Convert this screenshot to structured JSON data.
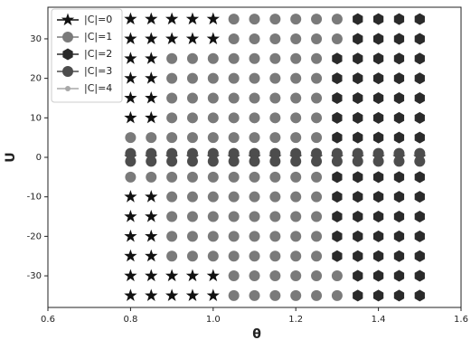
{
  "chart_data": {
    "type": "scatter",
    "x_label": "θ",
    "y_label": "U",
    "xlim": [
      0.6,
      1.6
    ],
    "ylim": [
      -38,
      38
    ],
    "xticks": [
      0.6,
      0.8,
      {
        "value": 1.0,
        "label": "1.0"
      },
      1.2,
      1.4,
      1.6
    ],
    "yticks": [
      -30,
      -20,
      -10,
      0,
      10,
      20,
      30
    ],
    "legend": "upper left",
    "series": [
      {
        "name": "|C|=0",
        "color": "#111111",
        "marker": "star",
        "x": [
          0.8,
          0.85,
          0.9,
          0.95,
          1.0,
          0.8,
          0.85,
          0.9,
          0.95,
          1.0,
          0.8,
          0.85,
          0.8,
          0.85,
          0.8,
          0.85,
          0.8,
          0.85,
          0.8,
          0.85,
          0.9,
          0.95,
          1.0,
          1.05,
          1.1,
          1.15,
          1.2,
          1.25,
          1.3,
          1.35,
          1.4,
          1.45,
          1.5,
          0.8,
          0.85,
          0.8,
          0.85,
          0.8,
          0.85,
          0.8,
          0.85,
          0.8,
          0.85,
          0.9,
          0.95,
          1.0,
          0.8,
          0.85,
          0.9,
          0.95,
          1.0
        ],
        "y": [
          35,
          35,
          35,
          35,
          35,
          30,
          30,
          30,
          30,
          30,
          25,
          25,
          20,
          20,
          15,
          15,
          10,
          10,
          0,
          0,
          0,
          0,
          0,
          0,
          0,
          0,
          0,
          0,
          0,
          0,
          0,
          0,
          0,
          -10,
          -10,
          -15,
          -15,
          -20,
          -20,
          -25,
          -25,
          -30,
          -30,
          -30,
          -30,
          -30,
          -35,
          -35,
          -35,
          -35,
          -35
        ]
      },
      {
        "name": "|C|=1",
        "color": "#7a7a7a",
        "marker": "circle",
        "x": [
          1.05,
          1.1,
          1.15,
          1.2,
          1.25,
          1.3,
          1.05,
          1.1,
          1.15,
          1.2,
          1.25,
          1.3,
          0.9,
          0.95,
          1.0,
          1.05,
          1.1,
          1.15,
          1.2,
          1.25,
          0.9,
          0.95,
          1.0,
          1.05,
          1.1,
          1.15,
          1.2,
          1.25,
          0.9,
          0.95,
          1.0,
          1.05,
          1.1,
          1.15,
          1.2,
          1.25,
          0.9,
          0.95,
          1.0,
          1.05,
          1.1,
          1.15,
          1.2,
          1.25,
          0.8,
          0.85,
          0.9,
          0.95,
          1.0,
          1.05,
          1.1,
          1.15,
          1.2,
          1.25,
          0.8,
          0.85,
          0.9,
          0.95,
          1.0,
          1.05,
          1.1,
          1.15,
          1.2,
          1.25,
          0.9,
          0.95,
          1.0,
          1.05,
          1.1,
          1.15,
          1.2,
          1.25,
          0.9,
          0.95,
          1.0,
          1.05,
          1.1,
          1.15,
          1.2,
          1.25,
          0.9,
          0.95,
          1.0,
          1.05,
          1.1,
          1.15,
          1.2,
          1.25,
          0.9,
          0.95,
          1.0,
          1.05,
          1.1,
          1.15,
          1.2,
          1.25,
          1.05,
          1.1,
          1.15,
          1.2,
          1.25,
          1.3,
          1.05,
          1.1,
          1.15,
          1.2,
          1.25,
          1.3
        ],
        "y": [
          35,
          35,
          35,
          35,
          35,
          35,
          30,
          30,
          30,
          30,
          30,
          30,
          25,
          25,
          25,
          25,
          25,
          25,
          25,
          25,
          20,
          20,
          20,
          20,
          20,
          20,
          20,
          20,
          15,
          15,
          15,
          15,
          15,
          15,
          15,
          15,
          10,
          10,
          10,
          10,
          10,
          10,
          10,
          10,
          5,
          5,
          5,
          5,
          5,
          5,
          5,
          5,
          5,
          5,
          -5,
          -5,
          -5,
          -5,
          -5,
          -5,
          -5,
          -5,
          -5,
          -5,
          -10,
          -10,
          -10,
          -10,
          -10,
          -10,
          -10,
          -10,
          -15,
          -15,
          -15,
          -15,
          -15,
          -15,
          -15,
          -15,
          -20,
          -20,
          -20,
          -20,
          -20,
          -20,
          -20,
          -20,
          -25,
          -25,
          -25,
          -25,
          -25,
          -25,
          -25,
          -25,
          -30,
          -30,
          -30,
          -30,
          -30,
          -30,
          -35,
          -35,
          -35,
          -35,
          -35,
          -35
        ]
      },
      {
        "name": "|C|=2",
        "color": "#2a2a2a",
        "marker": "hexagon",
        "x": [
          1.35,
          1.4,
          1.45,
          1.5,
          1.35,
          1.4,
          1.45,
          1.5,
          1.3,
          1.35,
          1.4,
          1.45,
          1.5,
          1.3,
          1.35,
          1.4,
          1.45,
          1.5,
          1.3,
          1.35,
          1.4,
          1.45,
          1.5,
          1.3,
          1.35,
          1.4,
          1.45,
          1.5,
          1.3,
          1.35,
          1.4,
          1.45,
          1.5,
          1.3,
          1.35,
          1.4,
          1.45,
          1.5,
          1.3,
          1.35,
          1.4,
          1.45,
          1.5,
          1.3,
          1.35,
          1.4,
          1.45,
          1.5,
          1.3,
          1.35,
          1.4,
          1.45,
          1.5,
          1.3,
          1.35,
          1.4,
          1.45,
          1.5,
          1.35,
          1.4,
          1.45,
          1.5,
          1.35,
          1.4,
          1.45,
          1.5
        ],
        "y": [
          35,
          35,
          35,
          35,
          30,
          30,
          30,
          30,
          25,
          25,
          25,
          25,
          25,
          20,
          20,
          20,
          20,
          20,
          15,
          15,
          15,
          15,
          15,
          10,
          10,
          10,
          10,
          10,
          5,
          5,
          5,
          5,
          5,
          -5,
          -5,
          -5,
          -5,
          -5,
          -10,
          -10,
          -10,
          -10,
          -10,
          -15,
          -15,
          -15,
          -15,
          -15,
          -20,
          -20,
          -20,
          -20,
          -20,
          -25,
          -25,
          -25,
          -25,
          -25,
          -30,
          -30,
          -30,
          -30,
          -35,
          -35,
          -35,
          -35
        ]
      },
      {
        "name": "|C|=3",
        "color": "#4d4d4d",
        "marker": "circle",
        "x": [
          0.8,
          0.85,
          0.9,
          0.95,
          1.0,
          1.05,
          1.1,
          1.15,
          1.2,
          1.25,
          1.3,
          1.35,
          1.4,
          1.45,
          1.5,
          0.8,
          0.85,
          0.9,
          0.95,
          1.0,
          1.05,
          1.1,
          1.15,
          1.2,
          1.25,
          1.3,
          1.35,
          1.4,
          1.45,
          1.5
        ],
        "y": [
          1,
          1,
          1,
          1,
          1,
          1,
          1,
          1,
          1,
          1,
          1,
          1,
          1,
          1,
          1,
          -1,
          -1,
          -1,
          -1,
          -1,
          -1,
          -1,
          -1,
          -1,
          -1,
          -1,
          -1,
          -1,
          -1,
          -1
        ]
      },
      {
        "name": "|C|=4",
        "color": "#a8a8a8",
        "marker": "dot",
        "x": [],
        "y": []
      }
    ]
  }
}
